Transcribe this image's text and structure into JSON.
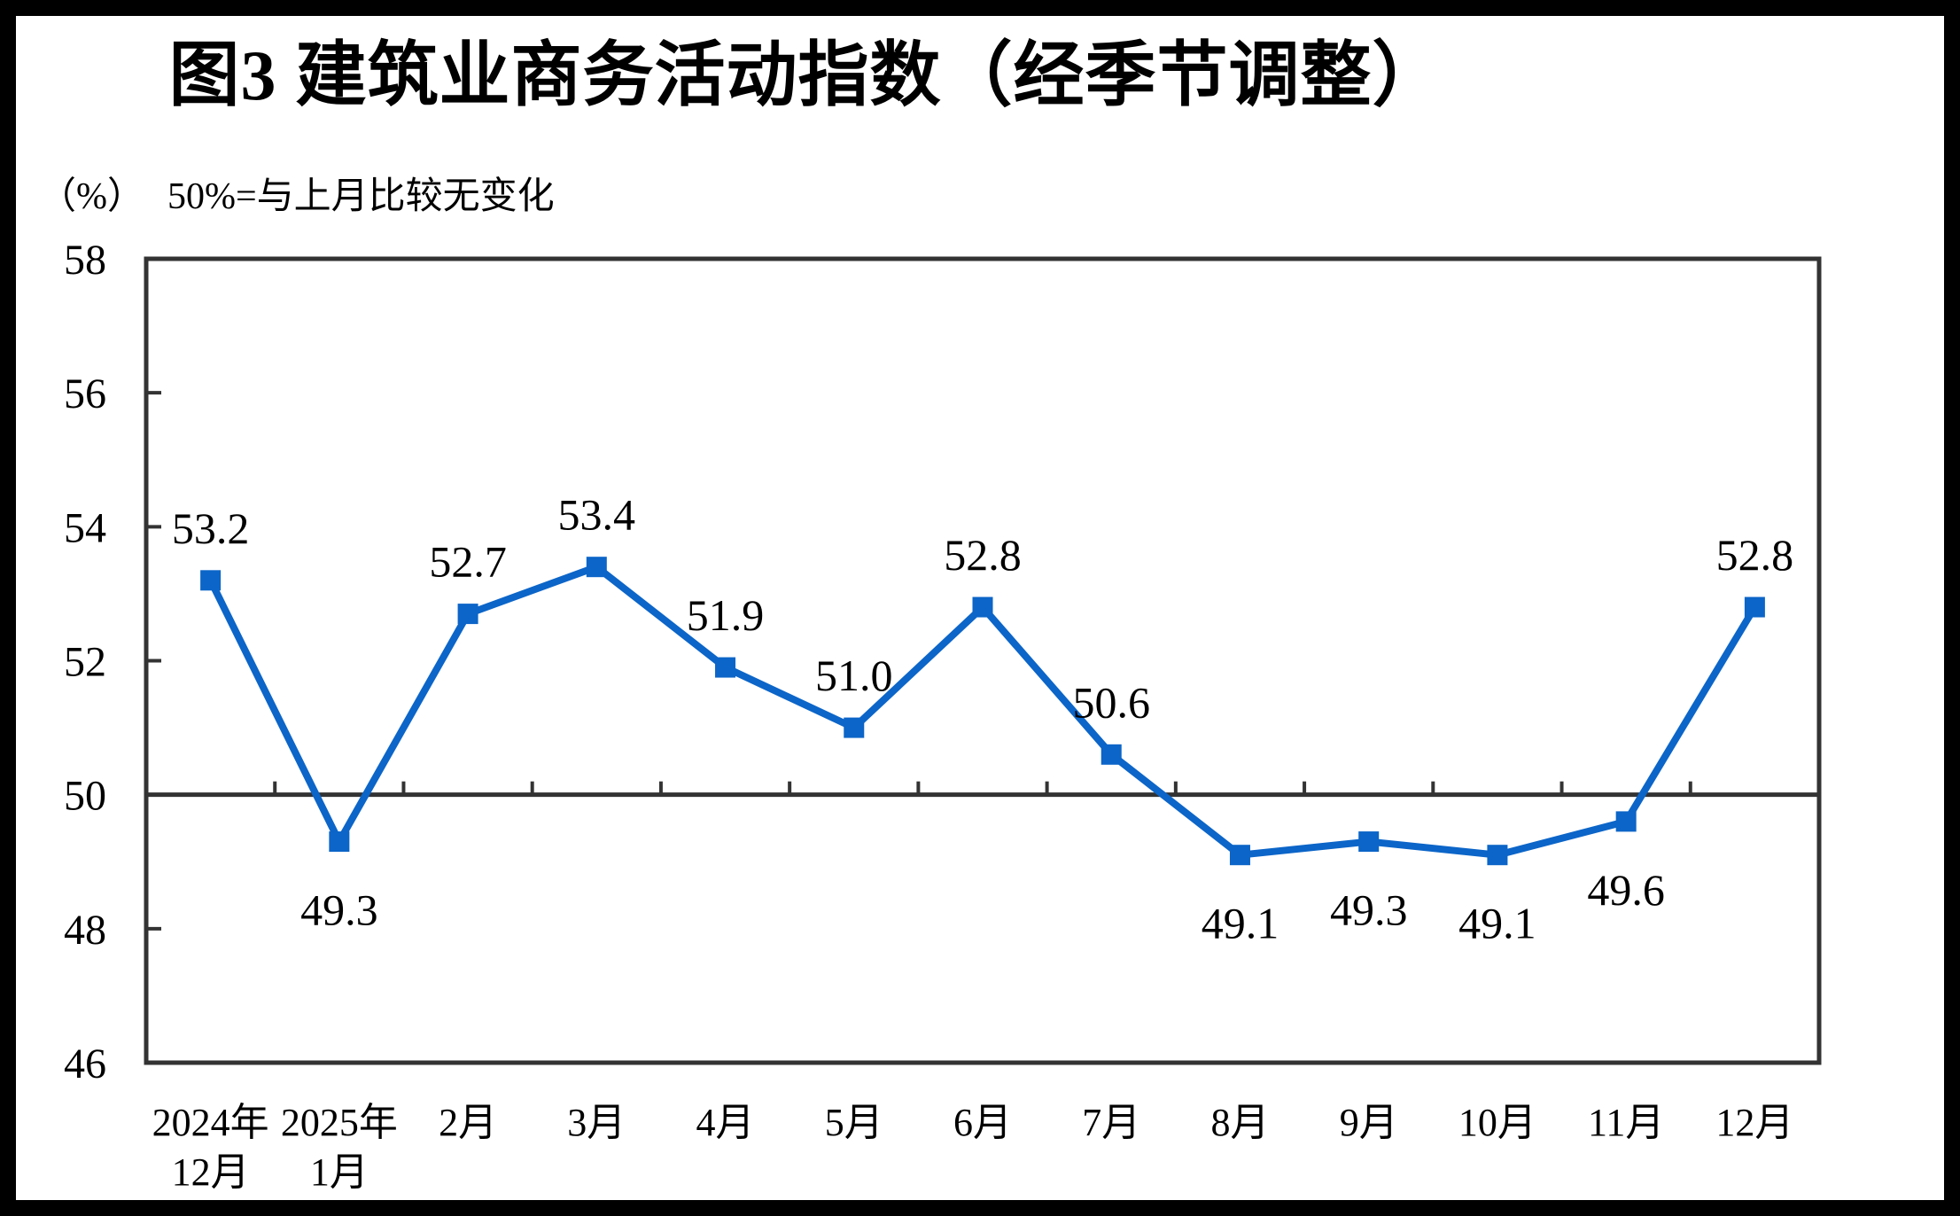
{
  "figure": {
    "title": "图3  建筑业商务活动指数（经季节调整）",
    "unit_label": "（%）",
    "note": "50%=与上月比较无变化"
  },
  "chart_data": {
    "type": "line",
    "title": "图3 建筑业商务活动指数（经季节调整）",
    "subtitle": "（%） 50%=与上月比较无变化",
    "categories": [
      "2024年12月",
      "2025年1月",
      "2月",
      "3月",
      "4月",
      "5月",
      "6月",
      "7月",
      "8月",
      "9月",
      "10月",
      "11月",
      "12月"
    ],
    "category_labels": [
      [
        "2024年",
        "12月"
      ],
      [
        "2025年",
        "1月"
      ],
      [
        "2月"
      ],
      [
        "3月"
      ],
      [
        "4月"
      ],
      [
        "5月"
      ],
      [
        "6月"
      ],
      [
        "7月"
      ],
      [
        "8月"
      ],
      [
        "9月"
      ],
      [
        "10月"
      ],
      [
        "11月"
      ],
      [
        "12月"
      ]
    ],
    "values": [
      53.2,
      49.3,
      52.7,
      53.4,
      51.9,
      51.0,
      52.8,
      50.6,
      49.1,
      49.3,
      49.1,
      49.6,
      52.8
    ],
    "data_labels": [
      "53.2",
      "49.3",
      "52.7",
      "53.4",
      "51.9",
      "51.0",
      "52.8",
      "50.6",
      "49.1",
      "49.3",
      "49.1",
      "49.6",
      "52.8"
    ],
    "label_positions": [
      "above",
      "below",
      "above",
      "above",
      "above",
      "above",
      "above",
      "above",
      "below",
      "below",
      "below",
      "below",
      "above"
    ],
    "ylabel": "%",
    "xlabel": "",
    "ylim": [
      46,
      58
    ],
    "ytick_step": 2,
    "yticks": [
      58,
      56,
      54,
      52,
      50,
      48,
      46
    ],
    "reference_line": 50,
    "grid": "off",
    "legend": "none",
    "line_color": "#0C65C8",
    "axis_color": "#333333",
    "text_color": "#000000"
  }
}
